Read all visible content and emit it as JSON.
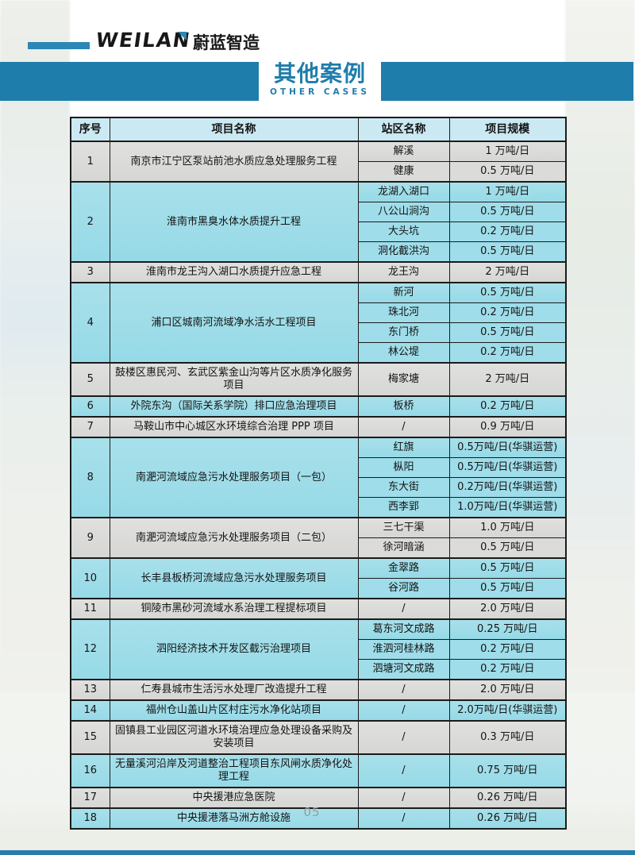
{
  "brand": {
    "name": "WEILAN",
    "cn": "蔚蓝智造"
  },
  "banner": {
    "title": "其他案例",
    "subtitle": "OTHER CASES"
  },
  "table": {
    "headers": [
      "序号",
      "项目名称",
      "站区名称",
      "项目规模"
    ],
    "rows": [
      {
        "no": "1",
        "project": "南京市江宁区泵站前池水质应急处理服务工程",
        "stations": [
          {
            "name": "解溪",
            "scale": "1 万吨/日"
          },
          {
            "name": "健康",
            "scale": "0.5 万吨/日"
          }
        ]
      },
      {
        "no": "2",
        "project": "淮南市黑臭水体水质提升工程",
        "stations": [
          {
            "name": "龙湖入湖口",
            "scale": "1 万吨/日"
          },
          {
            "name": "八公山涧沟",
            "scale": "0.5 万吨/日"
          },
          {
            "name": "大头坑",
            "scale": "0.2 万吨/日"
          },
          {
            "name": "洞化截洪沟",
            "scale": "0.5 万吨/日"
          }
        ]
      },
      {
        "no": "3",
        "project": "淮南市龙王沟入湖口水质提升应急工程",
        "stations": [
          {
            "name": "龙王沟",
            "scale": "2 万吨/日"
          }
        ]
      },
      {
        "no": "4",
        "project": "浦口区城南河流域净水活水工程项目",
        "stations": [
          {
            "name": "新河",
            "scale": "0.5 万吨/日"
          },
          {
            "name": "珠北河",
            "scale": "0.2 万吨/日"
          },
          {
            "name": "东门桥",
            "scale": "0.5 万吨/日"
          },
          {
            "name": "林公堤",
            "scale": "0.2 万吨/日"
          }
        ]
      },
      {
        "no": "5",
        "project": "鼓楼区惠民河、玄武区紫金山沟等片区水质净化服务项目",
        "stations": [
          {
            "name": "梅家塘",
            "scale": "2 万吨/日"
          }
        ]
      },
      {
        "no": "6",
        "project": "外院东沟（国际关系学院）排口应急治理项目",
        "stations": [
          {
            "name": "板桥",
            "scale": "0.2 万吨/日"
          }
        ]
      },
      {
        "no": "7",
        "project": "马鞍山市中心城区水环境综合治理 PPP 项目",
        "stations": [
          {
            "name": "/",
            "scale": "0.9 万吨/日"
          }
        ]
      },
      {
        "no": "8",
        "project": "南淝河流域应急污水处理服务项目（一包）",
        "stations": [
          {
            "name": "红旗",
            "scale": "0.5万吨/日(华骐运营)"
          },
          {
            "name": "枞阳",
            "scale": "0.5万吨/日(华骐运营)"
          },
          {
            "name": "东大街",
            "scale": "0.2万吨/日(华骐运营)"
          },
          {
            "name": "西李郢",
            "scale": "1.0万吨/日(华骐运营)"
          }
        ]
      },
      {
        "no": "9",
        "project": "南淝河流域应急污水处理服务项目（二包）",
        "stations": [
          {
            "name": "三七干渠",
            "scale": "1.0 万吨/日"
          },
          {
            "name": "徐河暗涵",
            "scale": "0.5 万吨/日"
          }
        ]
      },
      {
        "no": "10",
        "project": "长丰县板桥河流域应急污水处理服务项目",
        "stations": [
          {
            "name": "金翠路",
            "scale": "0.5 万吨/日"
          },
          {
            "name": "谷河路",
            "scale": "0.5 万吨/日"
          }
        ]
      },
      {
        "no": "11",
        "project": "铜陵市黑砂河流域水系治理工程提标项目",
        "stations": [
          {
            "name": "/",
            "scale": "2.0 万吨/日"
          }
        ]
      },
      {
        "no": "12",
        "project": "泗阳经济技术开发区截污治理项目",
        "stations": [
          {
            "name": "葛东河文成路",
            "scale": "0.25 万吨/日"
          },
          {
            "name": "淮泗河桂林路",
            "scale": "0.2 万吨/日"
          },
          {
            "name": "泗塘河文成路",
            "scale": "0.2 万吨/日"
          }
        ]
      },
      {
        "no": "13",
        "project": "仁寿县城市生活污水处理厂改造提升工程",
        "stations": [
          {
            "name": "/",
            "scale": "2.0 万吨/日"
          }
        ]
      },
      {
        "no": "14",
        "project": "福州仓山盖山片区村庄污水净化站项目",
        "stations": [
          {
            "name": "/",
            "scale": "2.0万吨/日(华骐运营)"
          }
        ]
      },
      {
        "no": "15",
        "project": "固镇县工业园区河道水环境治理应急处理设备采购及安装项目",
        "stations": [
          {
            "name": "/",
            "scale": "0.3 万吨/日"
          }
        ]
      },
      {
        "no": "16",
        "project": "无量溪河沿岸及河道整治工程项目东风闸水质净化处理工程",
        "stations": [
          {
            "name": "/",
            "scale": "0.75 万吨/日"
          }
        ]
      },
      {
        "no": "17",
        "project": "中央援港应急医院",
        "stations": [
          {
            "name": "/",
            "scale": "0.26 万吨/日"
          }
        ]
      },
      {
        "no": "18",
        "project": "中央援港落马洲方舱设施",
        "stations": [
          {
            "name": "/",
            "scale": "0.26 万吨/日"
          }
        ]
      }
    ]
  },
  "footer": {
    "page_number": "05"
  },
  "colors": {
    "banner-blue": "#1f7dab",
    "logo-blue": "#2b87b5",
    "header-blue": "#cbe9f3",
    "cyan-row": "#9edde9",
    "gray-row": "#dbdbd9",
    "footer-blue": "#2a7cae"
  }
}
